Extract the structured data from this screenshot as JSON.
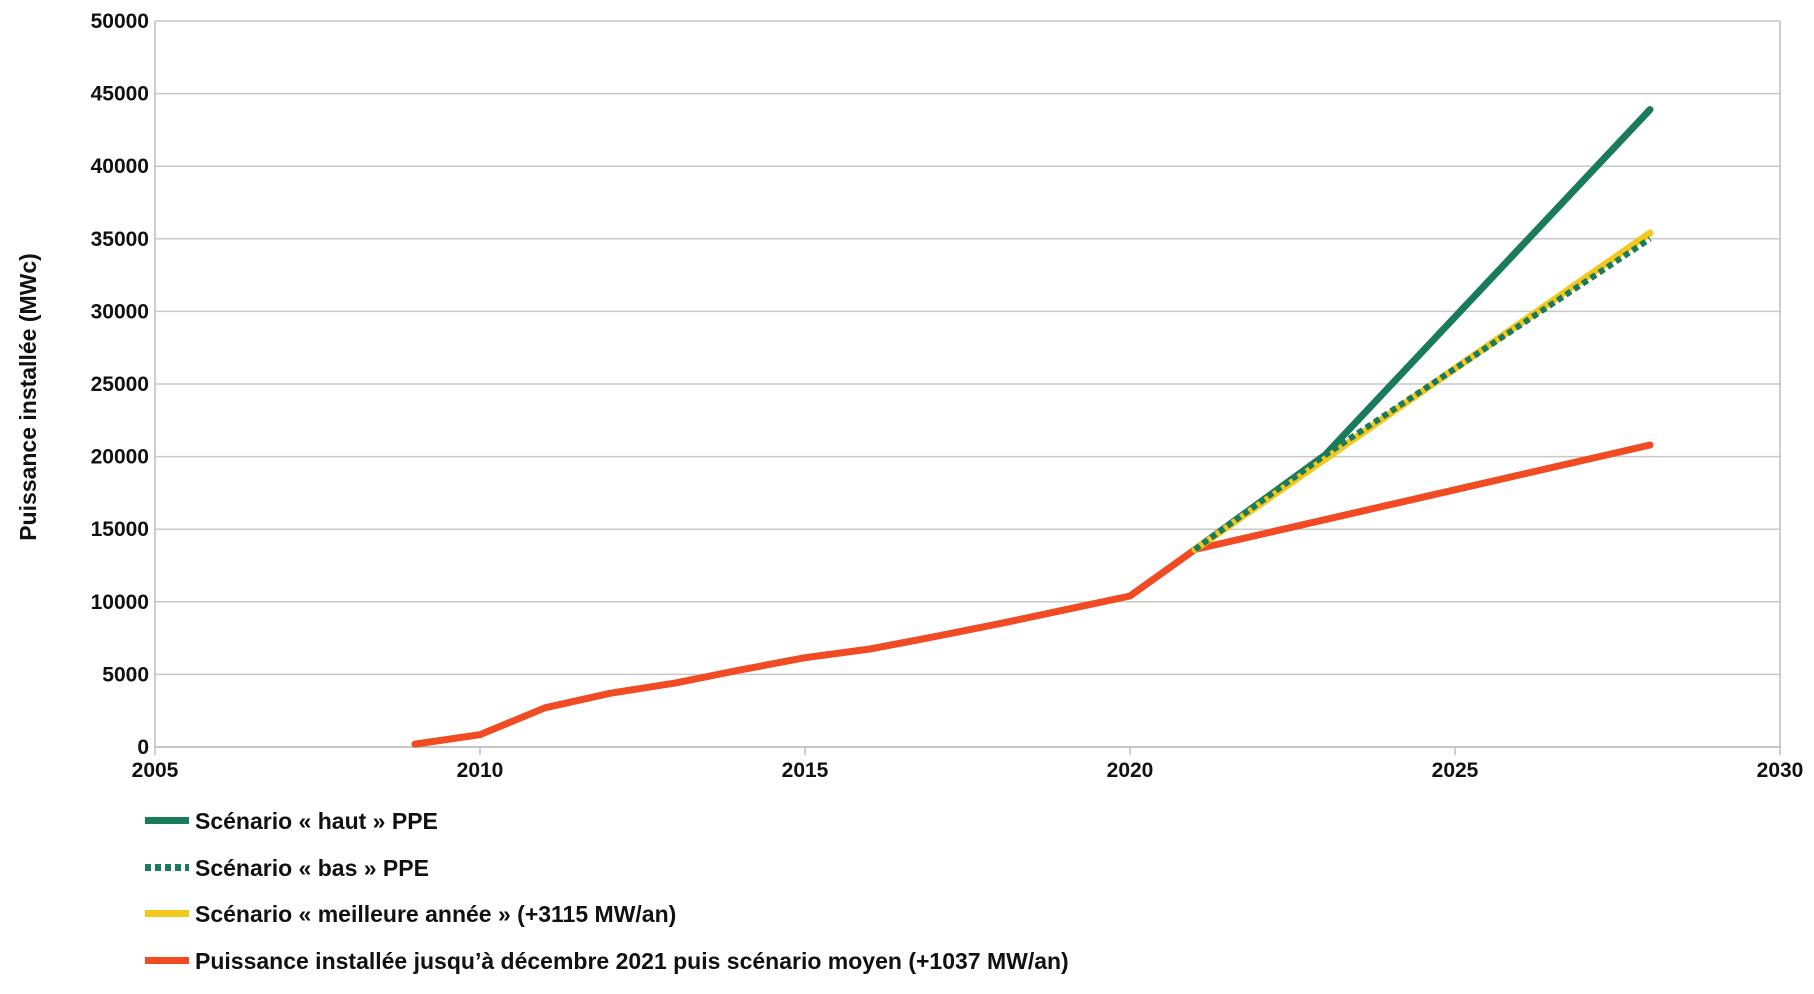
{
  "chart_data": {
    "type": "line",
    "title": "",
    "xlabel": "",
    "ylabel": "Puissance installée (MWc)",
    "xlim": [
      2005,
      2030
    ],
    "ylim": [
      0,
      50000
    ],
    "xticks": [
      2005,
      2010,
      2015,
      2020,
      2025,
      2030
    ],
    "yticks": [
      0,
      5000,
      10000,
      15000,
      20000,
      25000,
      30000,
      35000,
      40000,
      45000,
      50000
    ],
    "grid": "horizontal",
    "legend_position": "bottom",
    "series": [
      {
        "name": "Scénario « haut » PPE",
        "color": "#1a7a5c",
        "style": "solid",
        "x": [
          2021,
          2023,
          2028
        ],
        "y": [
          13600,
          20100,
          43900
        ]
      },
      {
        "name": "Scénario « bas » PPE",
        "color": "#1a7a5c",
        "style": "dotted",
        "x": [
          2021,
          2023,
          2028
        ],
        "y": [
          13600,
          20100,
          35000
        ]
      },
      {
        "name": "Scénario « meilleure année » (+3115 MW/an)",
        "color": "#f2c81c",
        "style": "solid",
        "x": [
          2021,
          2028
        ],
        "y": [
          13600,
          35400
        ]
      },
      {
        "name": "Puissance installée jusqu’à décembre 2021 puis scénario moyen (+1037 MW/an)",
        "color": "#f04b23",
        "style": "solid",
        "x": [
          2009,
          2010,
          2011,
          2012,
          2013,
          2014,
          2015,
          2016,
          2017,
          2018,
          2019,
          2020,
          2021,
          2028
        ],
        "y": [
          200,
          850,
          2700,
          3700,
          4400,
          5300,
          6150,
          6750,
          7600,
          8500,
          9450,
          10400,
          13600,
          20800
        ]
      }
    ]
  }
}
